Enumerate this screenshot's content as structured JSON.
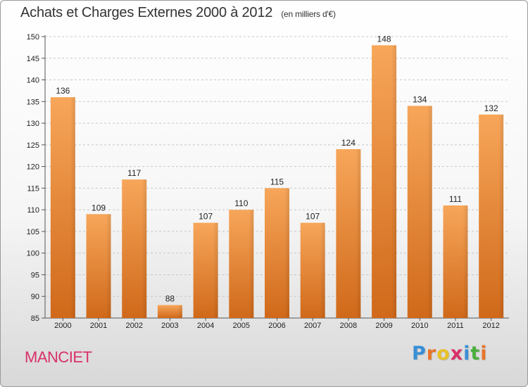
{
  "header": {
    "title": "Achats et Charges Externes 2000 à 2012",
    "subtitle": "(en milliers d'€)"
  },
  "footer": {
    "commune": "MANCIET",
    "logo_letters": [
      "P",
      "r",
      "o",
      "x",
      "i",
      "t",
      "i"
    ],
    "logo_colors": [
      "#3a8fd6",
      "#e8742a",
      "#e8c12a",
      "#d8306a",
      "#3a8fd6",
      "#4cae3c",
      "#e8742a"
    ]
  },
  "chart_data": {
    "type": "bar",
    "categories": [
      "2000",
      "2001",
      "2002",
      "2003",
      "2004",
      "2005",
      "2006",
      "2007",
      "2008",
      "2009",
      "2010",
      "2011",
      "2012"
    ],
    "values": [
      136,
      109,
      117,
      88,
      107,
      110,
      115,
      107,
      124,
      148,
      134,
      111,
      132
    ],
    "ylim": [
      85,
      150
    ],
    "yticks": [
      85,
      90,
      95,
      100,
      105,
      110,
      115,
      120,
      125,
      130,
      135,
      140,
      145,
      150
    ],
    "grid": true,
    "bar_color_top": "#f7a65a",
    "bar_color_bottom": "#d0691a"
  }
}
